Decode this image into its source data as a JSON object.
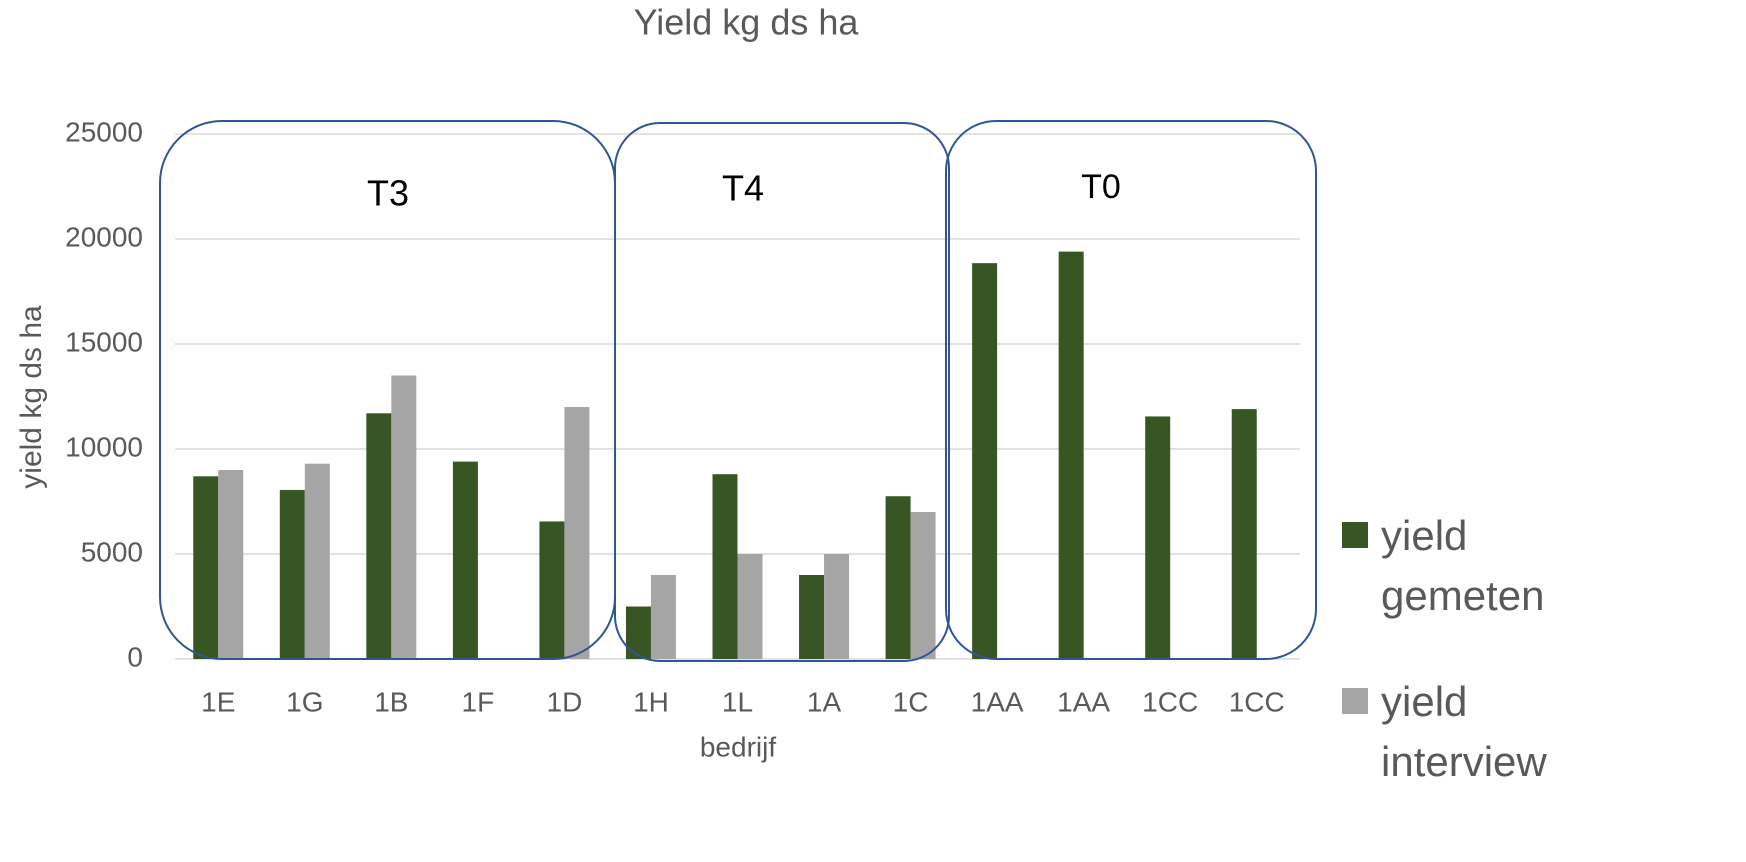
{
  "chart_data": {
    "type": "bar",
    "title": "Yield kg ds ha",
    "y_label": "yield kg ds ha",
    "x_label": "bedrijf",
    "categories": [
      "1E",
      "1G",
      "1B",
      "1F",
      "1D",
      "1H",
      "1L",
      "1A",
      "1C",
      "1AA",
      "1AA",
      "1CC",
      "1CC"
    ],
    "series": [
      {
        "name": "yield gemeten",
        "color": "#375623",
        "values": [
          8700,
          8050,
          11700,
          9400,
          6550,
          2500,
          8800,
          4000,
          7750,
          18850,
          19400,
          11550,
          11900
        ]
      },
      {
        "name": "yield interview",
        "color": "#a5a5a5",
        "values": [
          9000,
          9300,
          13500,
          null,
          12000,
          4000,
          5000,
          5000,
          7000,
          null,
          null,
          null,
          null
        ]
      }
    ],
    "ylim": [
      0,
      25000
    ],
    "yticks": [
      0,
      5000,
      10000,
      15000,
      20000,
      25000
    ],
    "grid": true,
    "legend": "right",
    "annotations": [
      "T3",
      "T4",
      "T0"
    ]
  }
}
